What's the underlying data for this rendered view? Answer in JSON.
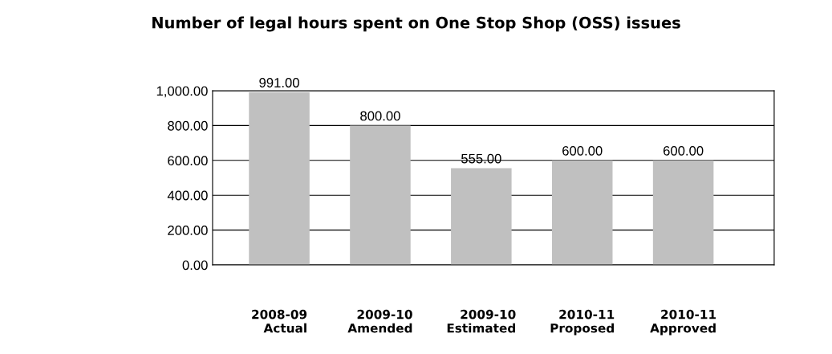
{
  "chart_data": {
    "type": "bar",
    "title": "Number of legal hours spent on One Stop Shop (OSS) issues",
    "categories": [
      "2008-09\nActual",
      "2009-10\nAmended",
      "2009-10\nEstimated",
      "2010-11\nProposed",
      "2010-11\nApproved"
    ],
    "values": [
      991,
      800,
      555,
      600,
      600
    ],
    "value_labels": [
      "991.00",
      "800.00",
      "555.00",
      "600.00",
      "600.00"
    ],
    "color": "#c0c0c0",
    "ylim": [
      0,
      1000
    ],
    "yticks": [
      {
        "value": 0,
        "label": "0.00"
      },
      {
        "value": 200,
        "label": "200.00"
      },
      {
        "value": 400,
        "label": "400.00"
      },
      {
        "value": 600,
        "label": "600.00"
      },
      {
        "value": 800,
        "label": "800.00"
      },
      {
        "value": 1000,
        "label": "1,000.00"
      }
    ],
    "grid": "y"
  }
}
